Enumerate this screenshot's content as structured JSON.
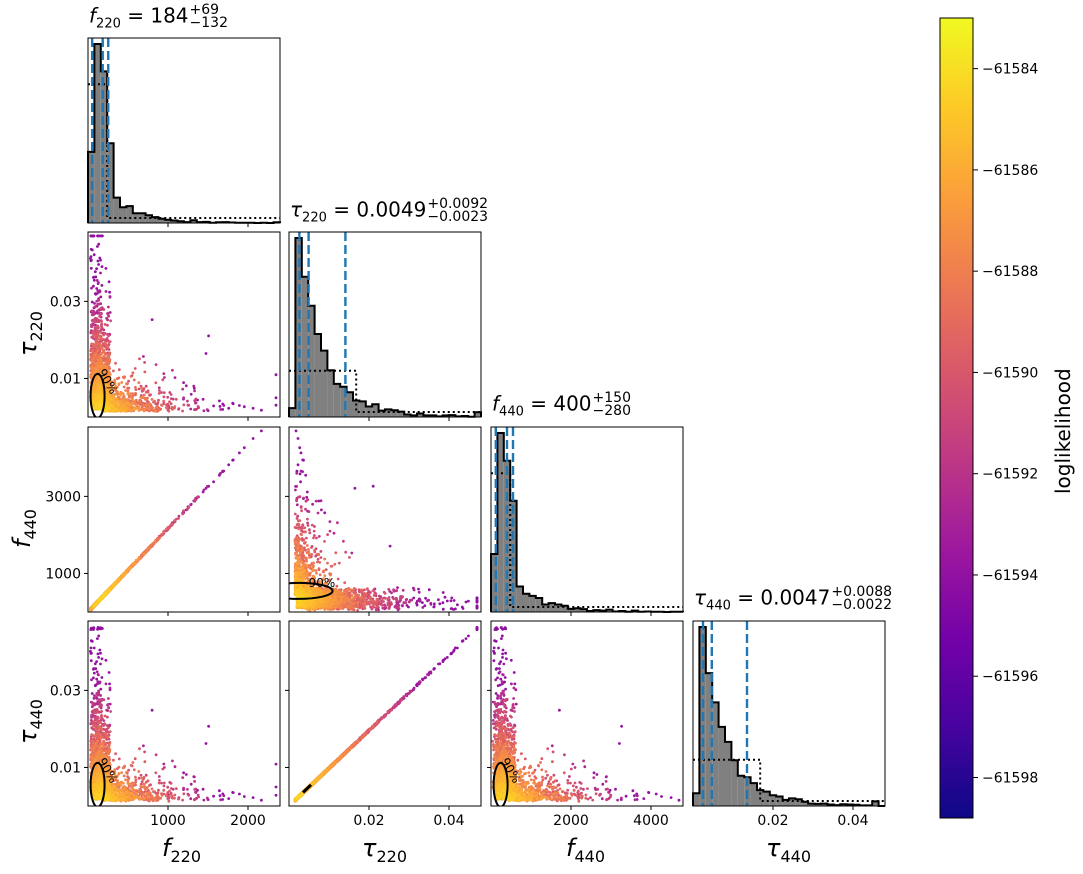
{
  "colors": {
    "scatter_high": "#f0f921",
    "scatter_low": "#0d0887",
    "colormap": "plasma",
    "hist_fill": "#808080",
    "hist_edge": "#000000",
    "quantile_lines": "#1f77b4",
    "prior_dotted": "#000000"
  },
  "parameters": [
    {
      "symbol": "f",
      "subscript": "220",
      "median": "184",
      "plus": "+69",
      "minus": "−132",
      "range": [
        0,
        2400
      ]
    },
    {
      "symbol": "τ",
      "subscript": "220",
      "median": "0.0049",
      "plus": "+0.0092",
      "minus": "−0.0023",
      "range": [
        0,
        0.048
      ]
    },
    {
      "symbol": "f",
      "subscript": "440",
      "median": "400",
      "plus": "+150",
      "minus": "−280",
      "range": [
        0,
        4800
      ]
    },
    {
      "symbol": "τ",
      "subscript": "440",
      "median": "0.0047",
      "plus": "+0.0088",
      "minus": "−0.0022",
      "range": [
        0,
        0.048
      ]
    }
  ],
  "tick_labels": {
    "f220": [
      "1000",
      "2000"
    ],
    "tau220": [
      "0.02",
      "0.04"
    ],
    "f440_x": [
      "2000",
      "4000"
    ],
    "tau440": [
      "0.02",
      "0.04"
    ],
    "tau220_y": [
      "0.01",
      "0.03"
    ],
    "f440_y": [
      "1000",
      "3000"
    ],
    "tau440_y": [
      "0.01",
      "0.03"
    ]
  },
  "colorbar": {
    "label": "loglikelihood",
    "min": -61598.8,
    "max": -61583.0,
    "ticks": [
      "−61584",
      "−61586",
      "−61588",
      "−61590",
      "−61592",
      "−61594",
      "−61596",
      "−61598"
    ],
    "tick_values": [
      -61584,
      -61586,
      -61588,
      -61590,
      -61592,
      -61594,
      -61596,
      -61598
    ]
  },
  "contour_label": "90%",
  "chart_data": {
    "type": "scatter",
    "subtype": "corner-plot",
    "variables": [
      "f220",
      "tau220",
      "f440",
      "tau440"
    ],
    "marginals": {
      "f220": {
        "median": 184,
        "credible_interval": [
          52,
          253
        ],
        "posterior_peak_bin": [
          200,
          260
        ],
        "prior_level": "flat low-f"
      },
      "tau220": {
        "median": 0.0049,
        "credible_interval": [
          0.0026,
          0.0141
        ]
      },
      "f440": {
        "median": 400,
        "credible_interval": [
          120,
          550
        ]
      },
      "tau440": {
        "median": 0.0047,
        "credible_interval": [
          0.0025,
          0.0135
        ]
      }
    },
    "relations": [
      {
        "pair": [
          "f220",
          "f440"
        ],
        "form": "linear",
        "slope_approx": 2.17
      },
      {
        "pair": [
          "tau220",
          "tau440"
        ],
        "form": "linear",
        "slope_approx": 1.0
      },
      {
        "pair": [
          "f220",
          "tau220"
        ],
        "form": "inverse"
      },
      {
        "pair": [
          "f440",
          "tau440"
        ],
        "form": "inverse"
      }
    ],
    "color_scale": {
      "label": "loglikelihood",
      "range": [
        -61598.8,
        -61583.0
      ]
    }
  }
}
